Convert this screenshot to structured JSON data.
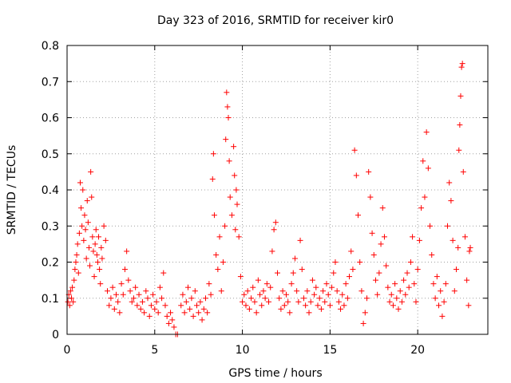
{
  "chart_data": {
    "type": "scatter",
    "title": "Day 323 of 2016, SRMTID for receiver kir0",
    "xlabel": "GPS time / hours",
    "ylabel": "SRMTID / TECUs",
    "xlim": [
      0,
      24
    ],
    "ylim": [
      0,
      0.8
    ],
    "xticks": [
      0,
      5,
      10,
      15,
      20
    ],
    "xtick_labels": [
      "0",
      "5",
      "10",
      "15",
      "20"
    ],
    "yticks": [
      0,
      0.1,
      0.2,
      0.3,
      0.4,
      0.5,
      0.6,
      0.7,
      0.8
    ],
    "ytick_labels": [
      "0",
      "0.1",
      "0.2",
      "0.3",
      "0.4",
      "0.5",
      "0.6",
      "0.7",
      "0.8"
    ],
    "grid": true,
    "marker": "plus",
    "series": [
      {
        "name": "kir0",
        "color": "#ff0000",
        "points": [
          [
            0.05,
            0.09
          ],
          [
            0.1,
            0.11
          ],
          [
            0.15,
            0.08
          ],
          [
            0.2,
            0.12
          ],
          [
            0.25,
            0.1
          ],
          [
            0.3,
            0.13
          ],
          [
            0.35,
            0.09
          ],
          [
            0.4,
            0.15
          ],
          [
            0.45,
            0.18
          ],
          [
            0.5,
            0.2
          ],
          [
            0.55,
            0.22
          ],
          [
            0.6,
            0.25
          ],
          [
            0.65,
            0.17
          ],
          [
            0.7,
            0.28
          ],
          [
            0.75,
            0.42
          ],
          [
            0.8,
            0.35
          ],
          [
            0.85,
            0.3
          ],
          [
            0.9,
            0.4
          ],
          [
            0.95,
            0.26
          ],
          [
            1.0,
            0.33
          ],
          [
            1.05,
            0.29
          ],
          [
            1.1,
            0.21
          ],
          [
            1.15,
            0.37
          ],
          [
            1.2,
            0.31
          ],
          [
            1.25,
            0.24
          ],
          [
            1.3,
            0.19
          ],
          [
            1.35,
            0.45
          ],
          [
            1.4,
            0.38
          ],
          [
            1.45,
            0.27
          ],
          [
            1.5,
            0.23
          ],
          [
            1.55,
            0.16
          ],
          [
            1.6,
            0.25
          ],
          [
            1.65,
            0.29
          ],
          [
            1.7,
            0.22
          ],
          [
            1.75,
            0.2
          ],
          [
            1.8,
            0.27
          ],
          [
            1.85,
            0.18
          ],
          [
            1.9,
            0.14
          ],
          [
            1.95,
            0.24
          ],
          [
            2.0,
            0.21
          ],
          [
            2.1,
            0.3
          ],
          [
            2.2,
            0.26
          ],
          [
            2.3,
            0.12
          ],
          [
            2.4,
            0.08
          ],
          [
            2.5,
            0.1
          ],
          [
            2.6,
            0.13
          ],
          [
            2.7,
            0.07
          ],
          [
            2.8,
            0.11
          ],
          [
            2.9,
            0.09
          ],
          [
            3.0,
            0.06
          ],
          [
            3.1,
            0.14
          ],
          [
            3.2,
            0.11
          ],
          [
            3.3,
            0.18
          ],
          [
            3.4,
            0.23
          ],
          [
            3.5,
            0.15
          ],
          [
            3.6,
            0.12
          ],
          [
            3.7,
            0.09
          ],
          [
            3.8,
            0.1
          ],
          [
            3.9,
            0.13
          ],
          [
            4.0,
            0.08
          ],
          [
            4.1,
            0.11
          ],
          [
            4.2,
            0.07
          ],
          [
            4.3,
            0.09
          ],
          [
            4.4,
            0.06
          ],
          [
            4.5,
            0.12
          ],
          [
            4.6,
            0.1
          ],
          [
            4.7,
            0.05
          ],
          [
            4.8,
            0.08
          ],
          [
            4.9,
            0.11
          ],
          [
            5.0,
            0.07
          ],
          [
            5.1,
            0.09
          ],
          [
            5.2,
            0.06
          ],
          [
            5.3,
            0.13
          ],
          [
            5.4,
            0.1
          ],
          [
            5.5,
            0.17
          ],
          [
            5.6,
            0.08
          ],
          [
            5.7,
            0.05
          ],
          [
            5.8,
            0.03
          ],
          [
            5.9,
            0.06
          ],
          [
            6.0,
            0.04
          ],
          [
            6.1,
            0.02
          ],
          [
            6.2,
            0.0
          ],
          [
            6.3,
            0.0
          ],
          [
            6.5,
            0.08
          ],
          [
            6.6,
            0.11
          ],
          [
            6.7,
            0.06
          ],
          [
            6.8,
            0.09
          ],
          [
            6.9,
            0.13
          ],
          [
            7.0,
            0.07
          ],
          [
            7.1,
            0.1
          ],
          [
            7.2,
            0.05
          ],
          [
            7.3,
            0.12
          ],
          [
            7.4,
            0.08
          ],
          [
            7.5,
            0.06
          ],
          [
            7.6,
            0.09
          ],
          [
            7.7,
            0.04
          ],
          [
            7.8,
            0.07
          ],
          [
            7.9,
            0.1
          ],
          [
            8.0,
            0.06
          ],
          [
            8.1,
            0.14
          ],
          [
            8.2,
            0.11
          ],
          [
            8.3,
            0.43
          ],
          [
            8.35,
            0.5
          ],
          [
            8.4,
            0.33
          ],
          [
            8.5,
            0.22
          ],
          [
            8.6,
            0.18
          ],
          [
            8.7,
            0.27
          ],
          [
            8.8,
            0.12
          ],
          [
            8.9,
            0.2
          ],
          [
            9.0,
            0.3
          ],
          [
            9.05,
            0.54
          ],
          [
            9.1,
            0.67
          ],
          [
            9.15,
            0.63
          ],
          [
            9.2,
            0.6
          ],
          [
            9.25,
            0.48
          ],
          [
            9.3,
            0.38
          ],
          [
            9.4,
            0.33
          ],
          [
            9.5,
            0.52
          ],
          [
            9.55,
            0.44
          ],
          [
            9.6,
            0.29
          ],
          [
            9.65,
            0.4
          ],
          [
            9.7,
            0.36
          ],
          [
            9.8,
            0.27
          ],
          [
            9.9,
            0.16
          ],
          [
            10.0,
            0.09
          ],
          [
            10.1,
            0.11
          ],
          [
            10.2,
            0.08
          ],
          [
            10.3,
            0.12
          ],
          [
            10.4,
            0.07
          ],
          [
            10.5,
            0.1
          ],
          [
            10.6,
            0.13
          ],
          [
            10.7,
            0.09
          ],
          [
            10.8,
            0.06
          ],
          [
            10.9,
            0.15
          ],
          [
            11.0,
            0.11
          ],
          [
            11.1,
            0.08
          ],
          [
            11.2,
            0.12
          ],
          [
            11.3,
            0.1
          ],
          [
            11.4,
            0.14
          ],
          [
            11.5,
            0.09
          ],
          [
            11.6,
            0.13
          ],
          [
            11.7,
            0.23
          ],
          [
            11.8,
            0.29
          ],
          [
            11.9,
            0.31
          ],
          [
            12.0,
            0.17
          ],
          [
            12.1,
            0.1
          ],
          [
            12.2,
            0.07
          ],
          [
            12.3,
            0.12
          ],
          [
            12.4,
            0.08
          ],
          [
            12.5,
            0.11
          ],
          [
            12.6,
            0.09
          ],
          [
            12.7,
            0.06
          ],
          [
            12.8,
            0.14
          ],
          [
            12.9,
            0.17
          ],
          [
            13.0,
            0.21
          ],
          [
            13.1,
            0.12
          ],
          [
            13.2,
            0.09
          ],
          [
            13.3,
            0.26
          ],
          [
            13.4,
            0.18
          ],
          [
            13.5,
            0.1
          ],
          [
            13.6,
            0.08
          ],
          [
            13.7,
            0.12
          ],
          [
            13.8,
            0.06
          ],
          [
            13.9,
            0.09
          ],
          [
            14.0,
            0.15
          ],
          [
            14.1,
            0.11
          ],
          [
            14.2,
            0.13
          ],
          [
            14.3,
            0.08
          ],
          [
            14.4,
            0.1
          ],
          [
            14.5,
            0.07
          ],
          [
            14.6,
            0.12
          ],
          [
            14.7,
            0.09
          ],
          [
            14.8,
            0.14
          ],
          [
            14.9,
            0.11
          ],
          [
            15.0,
            0.08
          ],
          [
            15.1,
            0.13
          ],
          [
            15.2,
            0.17
          ],
          [
            15.3,
            0.2
          ],
          [
            15.4,
            0.12
          ],
          [
            15.5,
            0.09
          ],
          [
            15.6,
            0.07
          ],
          [
            15.7,
            0.11
          ],
          [
            15.8,
            0.08
          ],
          [
            15.9,
            0.14
          ],
          [
            16.0,
            0.1
          ],
          [
            16.1,
            0.16
          ],
          [
            16.2,
            0.23
          ],
          [
            16.3,
            0.18
          ],
          [
            16.4,
            0.51
          ],
          [
            16.5,
            0.44
          ],
          [
            16.6,
            0.33
          ],
          [
            16.7,
            0.2
          ],
          [
            16.8,
            0.12
          ],
          [
            16.9,
            0.03
          ],
          [
            17.0,
            0.06
          ],
          [
            17.1,
            0.1
          ],
          [
            17.2,
            0.45
          ],
          [
            17.3,
            0.38
          ],
          [
            17.4,
            0.28
          ],
          [
            17.5,
            0.22
          ],
          [
            17.6,
            0.15
          ],
          [
            17.7,
            0.11
          ],
          [
            17.8,
            0.17
          ],
          [
            17.9,
            0.25
          ],
          [
            18.0,
            0.35
          ],
          [
            18.1,
            0.27
          ],
          [
            18.2,
            0.19
          ],
          [
            18.3,
            0.13
          ],
          [
            18.4,
            0.09
          ],
          [
            18.5,
            0.11
          ],
          [
            18.6,
            0.08
          ],
          [
            18.7,
            0.14
          ],
          [
            18.8,
            0.1
          ],
          [
            18.9,
            0.07
          ],
          [
            19.0,
            0.12
          ],
          [
            19.1,
            0.09
          ],
          [
            19.2,
            0.15
          ],
          [
            19.3,
            0.11
          ],
          [
            19.4,
            0.17
          ],
          [
            19.5,
            0.13
          ],
          [
            19.6,
            0.2
          ],
          [
            19.7,
            0.27
          ],
          [
            19.8,
            0.14
          ],
          [
            19.9,
            0.09
          ],
          [
            20.0,
            0.18
          ],
          [
            20.1,
            0.26
          ],
          [
            20.2,
            0.35
          ],
          [
            20.3,
            0.48
          ],
          [
            20.4,
            0.38
          ],
          [
            20.5,
            0.56
          ],
          [
            20.6,
            0.46
          ],
          [
            20.7,
            0.3
          ],
          [
            20.8,
            0.22
          ],
          [
            20.9,
            0.14
          ],
          [
            21.0,
            0.1
          ],
          [
            21.1,
            0.16
          ],
          [
            21.2,
            0.08
          ],
          [
            21.3,
            0.12
          ],
          [
            21.4,
            0.05
          ],
          [
            21.5,
            0.09
          ],
          [
            21.6,
            0.14
          ],
          [
            21.7,
            0.3
          ],
          [
            21.8,
            0.42
          ],
          [
            21.9,
            0.37
          ],
          [
            22.0,
            0.26
          ],
          [
            22.1,
            0.12
          ],
          [
            22.2,
            0.18
          ],
          [
            22.3,
            0.24
          ],
          [
            22.35,
            0.51
          ],
          [
            22.4,
            0.58
          ],
          [
            22.45,
            0.66
          ],
          [
            22.5,
            0.74
          ],
          [
            22.55,
            0.75
          ],
          [
            22.6,
            0.45
          ],
          [
            22.7,
            0.27
          ],
          [
            22.8,
            0.15
          ],
          [
            22.9,
            0.08
          ],
          [
            22.95,
            0.23
          ],
          [
            23.0,
            0.24
          ]
        ]
      }
    ]
  }
}
